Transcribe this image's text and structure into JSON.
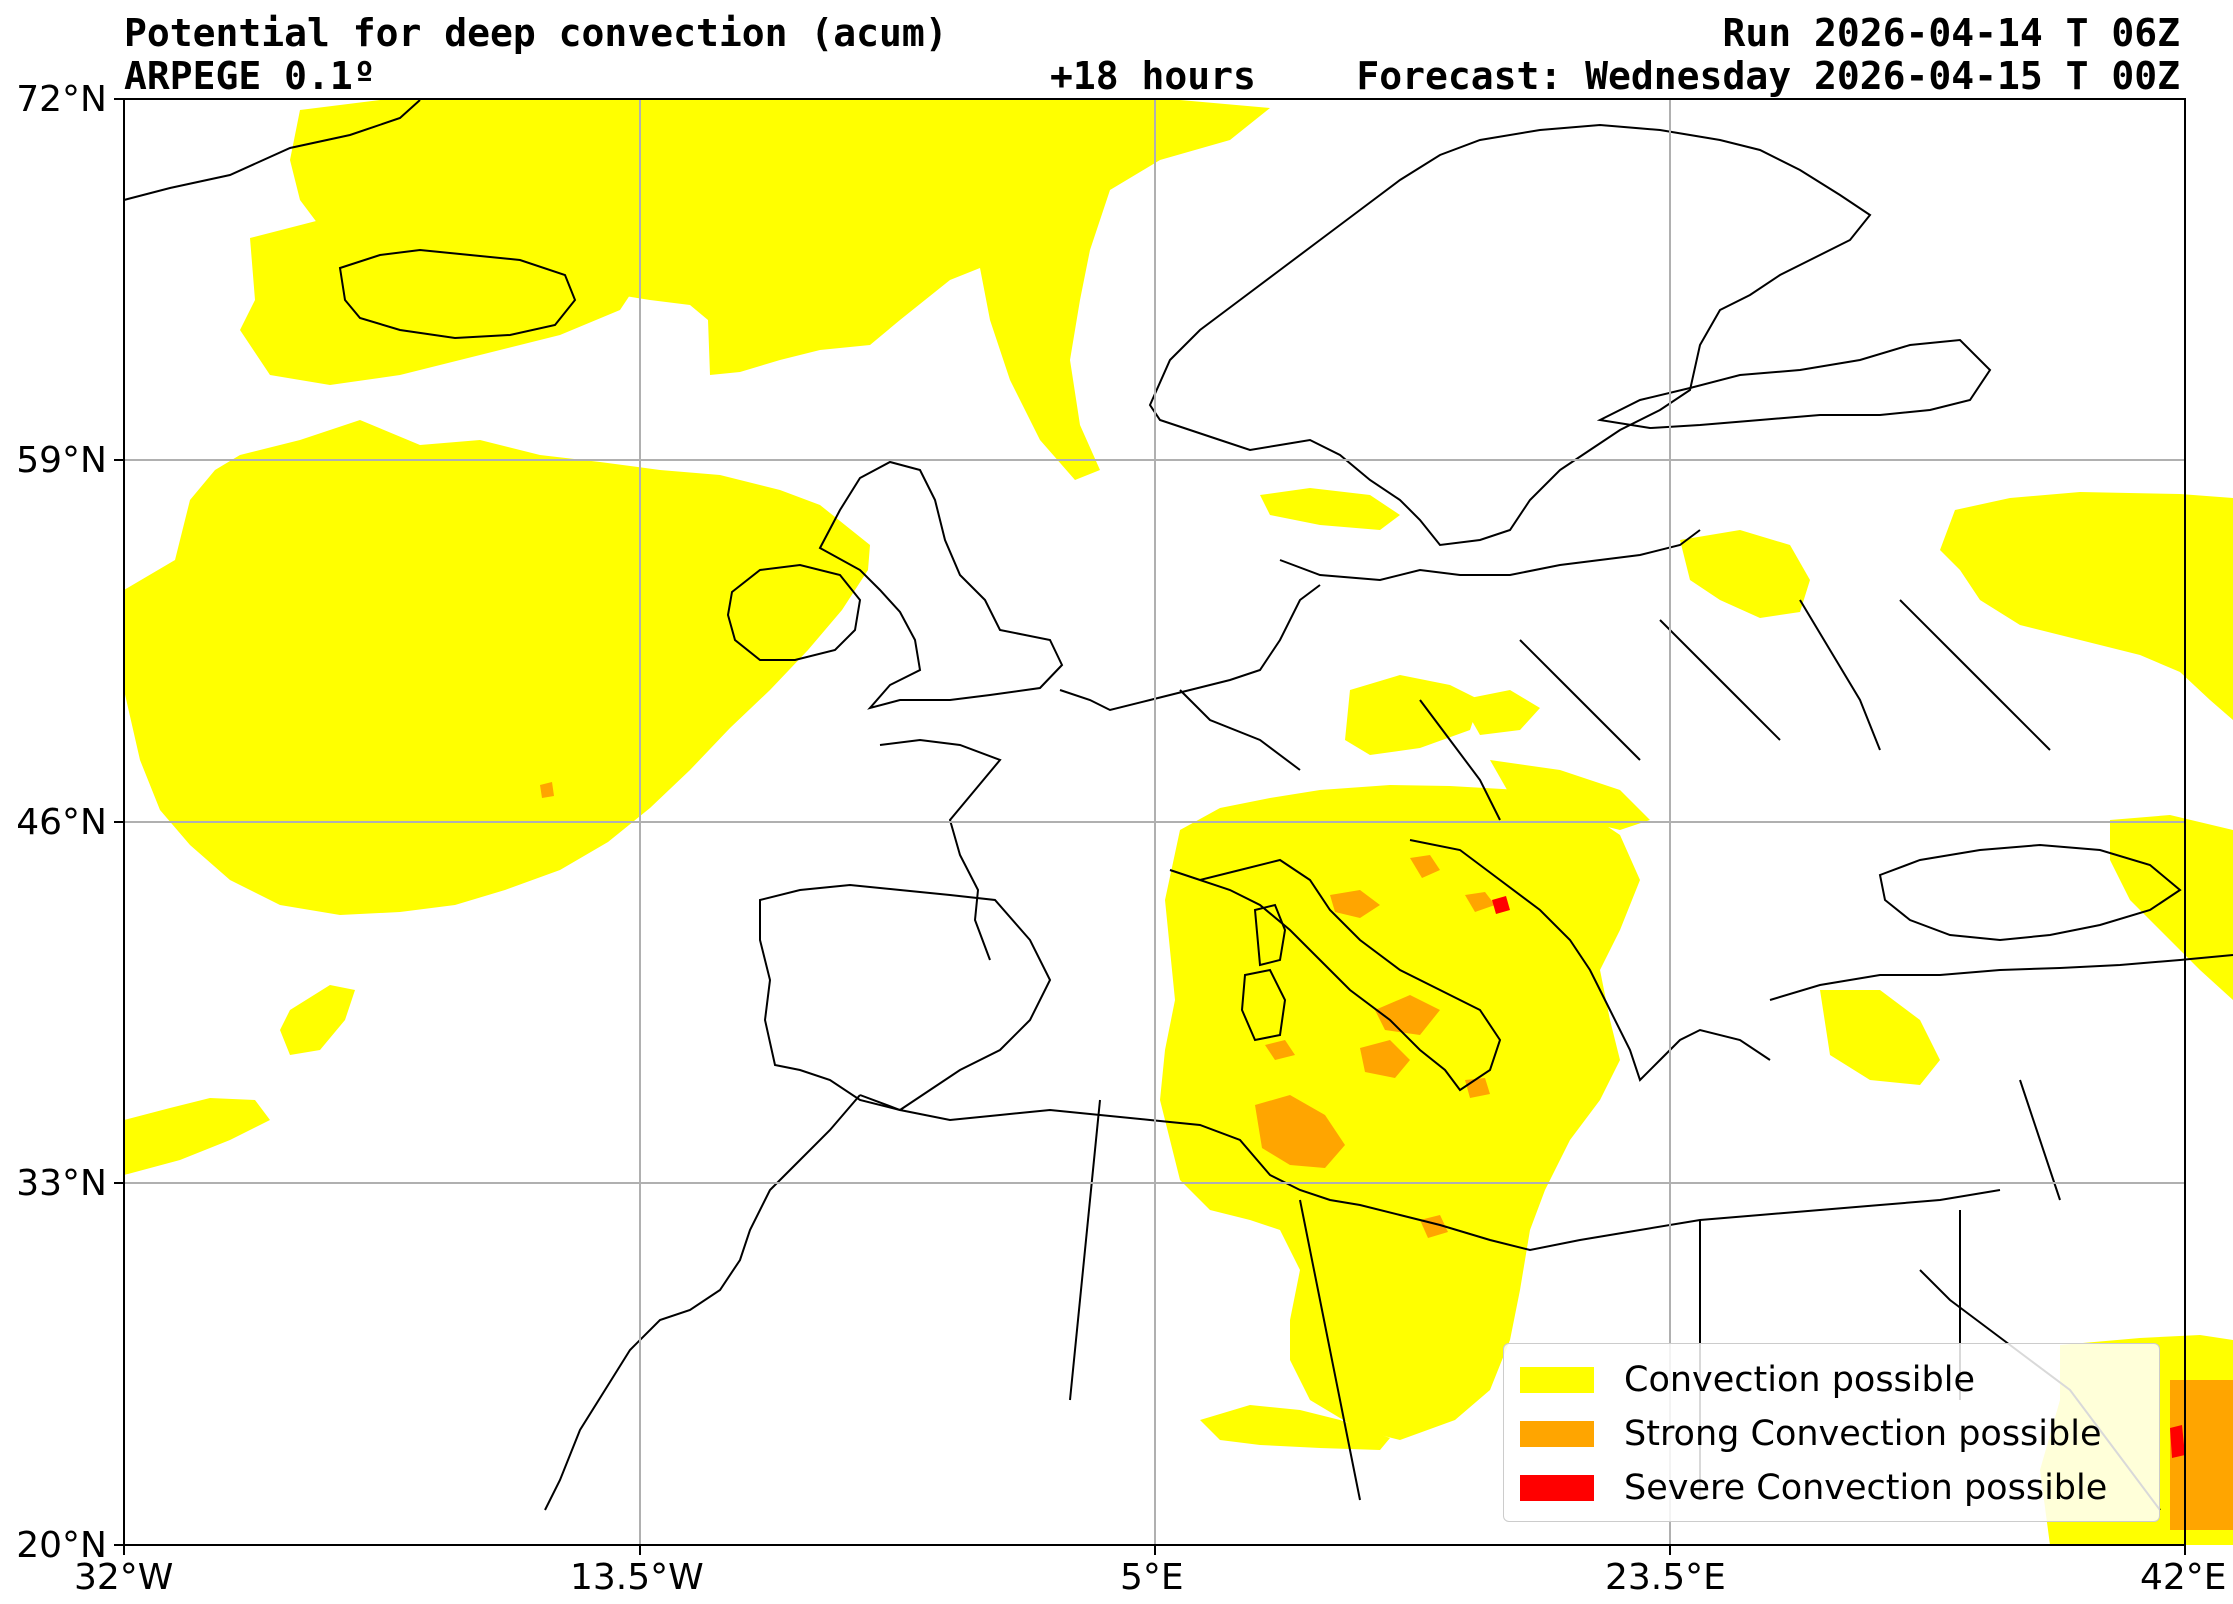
{
  "header": {
    "title": "Potential for deep convection (acum)",
    "model": "ARPEGE 0.1º",
    "run": "Run 2026-04-14 T 06Z",
    "lead": "+18 hours",
    "forecast": "Forecast: Wednesday 2026-04-15 T 00Z"
  },
  "axes": {
    "lat_ticks": [
      "72°N",
      "59°N",
      "46°N",
      "33°N",
      "20°N"
    ],
    "lon_ticks": [
      "32°W",
      "13.5°W",
      "5°E",
      "23.5°E",
      "42°E"
    ],
    "lat_range": [
      20,
      72
    ],
    "lon_range": [
      -32,
      42
    ],
    "grid": true
  },
  "legend": {
    "items": [
      {
        "label": "Convection possible",
        "color": "#ffff00"
      },
      {
        "label": "Strong Convection possible",
        "color": "#ffa500"
      },
      {
        "label": "Severe Convection possible",
        "color": "#ff0000"
      }
    ]
  },
  "colors": {
    "convection": "#ffff00",
    "strong": "#ffa500",
    "severe": "#ff0000",
    "grid": "#b0b0b0",
    "coast": "#000000"
  }
}
